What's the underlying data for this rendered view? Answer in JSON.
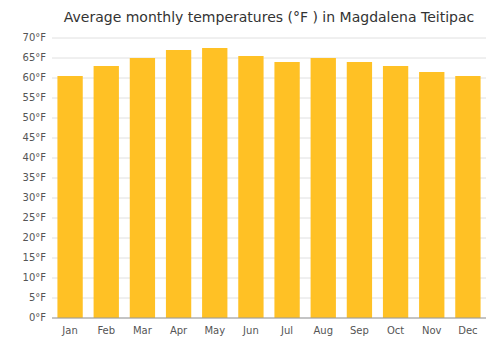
{
  "chart_data": {
    "type": "bar",
    "title": "Average monthly temperatures (°F ) in Magdalena Teitipac",
    "categories": [
      "Jan",
      "Feb",
      "Mar",
      "Apr",
      "May",
      "Jun",
      "Jul",
      "Aug",
      "Sep",
      "Oct",
      "Nov",
      "Dec"
    ],
    "values": [
      60.5,
      63.0,
      65.0,
      67.0,
      67.5,
      65.5,
      64.0,
      65.0,
      64.0,
      63.0,
      61.5,
      60.5
    ],
    "color": "#FFC125",
    "ylim": [
      0,
      70
    ],
    "yticks": [
      {
        "value": 0,
        "label": "0°F"
      },
      {
        "value": 5,
        "label": "5°F"
      },
      {
        "value": 10,
        "label": "10°F"
      },
      {
        "value": 15,
        "label": "15°F"
      },
      {
        "value": 20,
        "label": "20°F"
      },
      {
        "value": 25,
        "label": "25°F"
      },
      {
        "value": 30,
        "label": "30°F"
      },
      {
        "value": 35,
        "label": "35°F"
      },
      {
        "value": 40,
        "label": "40°F"
      },
      {
        "value": 45,
        "label": "45°F"
      },
      {
        "value": 50,
        "label": "50°F"
      },
      {
        "value": 55,
        "label": "55°F"
      },
      {
        "value": 60,
        "label": "60°F"
      },
      {
        "value": 65,
        "label": "65°F"
      },
      {
        "value": 70,
        "label": "70°F"
      }
    ],
    "grid": true
  }
}
